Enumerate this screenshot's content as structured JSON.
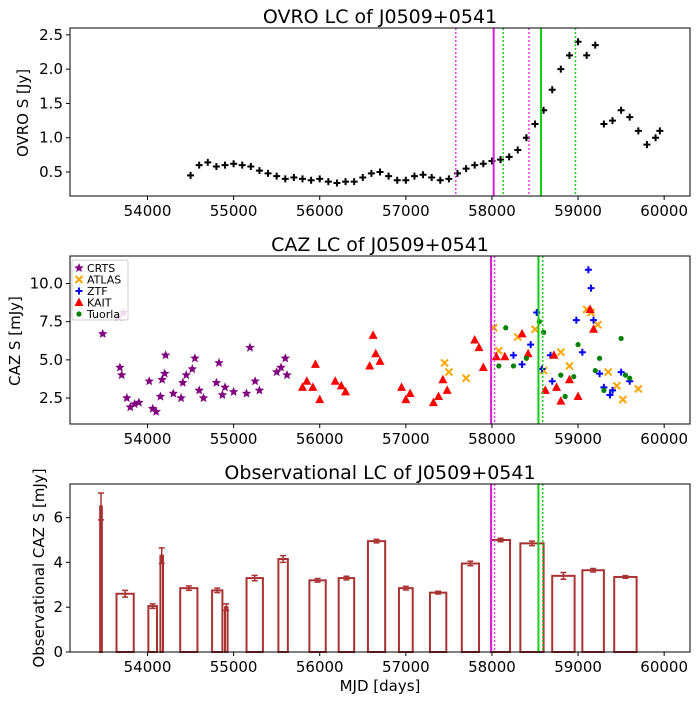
{
  "chart_data": [
    {
      "type": "scatter",
      "title": "OVRO LC of J0509+0541",
      "xlabel": "",
      "ylabel": "OVRO S [Jy]",
      "xlim": [
        53100,
        60300
      ],
      "ylim": [
        0.15,
        2.6
      ],
      "xticks": [
        "54000",
        "55000",
        "56000",
        "57000",
        "58000",
        "59000",
        "60000"
      ],
      "yticks": [
        "0.5",
        "1.0",
        "1.5",
        "2.0",
        "2.5"
      ],
      "ytick_values": [
        0.5,
        1.0,
        1.5,
        2.0,
        2.5
      ],
      "series": [
        {
          "name": "OVRO",
          "marker": "plus",
          "color": "#000000",
          "points": [
            [
              54500,
              0.45
            ],
            [
              54600,
              0.6
            ],
            [
              54700,
              0.64
            ],
            [
              54800,
              0.58
            ],
            [
              54900,
              0.6
            ],
            [
              55000,
              0.62
            ],
            [
              55100,
              0.6
            ],
            [
              55200,
              0.58
            ],
            [
              55300,
              0.52
            ],
            [
              55400,
              0.48
            ],
            [
              55500,
              0.44
            ],
            [
              55600,
              0.4
            ],
            [
              55700,
              0.42
            ],
            [
              55800,
              0.4
            ],
            [
              55900,
              0.38
            ],
            [
              56000,
              0.4
            ],
            [
              56100,
              0.36
            ],
            [
              56200,
              0.34
            ],
            [
              56300,
              0.36
            ],
            [
              56400,
              0.36
            ],
            [
              56500,
              0.42
            ],
            [
              56600,
              0.48
            ],
            [
              56700,
              0.5
            ],
            [
              56800,
              0.44
            ],
            [
              56900,
              0.38
            ],
            [
              57000,
              0.38
            ],
            [
              57100,
              0.44
            ],
            [
              57200,
              0.46
            ],
            [
              57300,
              0.42
            ],
            [
              57400,
              0.38
            ],
            [
              57500,
              0.4
            ],
            [
              57600,
              0.48
            ],
            [
              57700,
              0.55
            ],
            [
              57800,
              0.6
            ],
            [
              57900,
              0.62
            ],
            [
              58000,
              0.66
            ],
            [
              58100,
              0.68
            ],
            [
              58200,
              0.72
            ],
            [
              58300,
              0.82
            ],
            [
              58400,
              1.0
            ],
            [
              58500,
              1.2
            ],
            [
              58600,
              1.4
            ],
            [
              58700,
              1.7
            ],
            [
              58800,
              2.0
            ],
            [
              58900,
              2.2
            ],
            [
              59000,
              2.4
            ],
            [
              59100,
              2.2
            ],
            [
              59200,
              2.35
            ],
            [
              59300,
              1.2
            ],
            [
              59400,
              1.25
            ],
            [
              59500,
              1.4
            ],
            [
              59600,
              1.3
            ],
            [
              59700,
              1.1
            ],
            [
              59800,
              0.9
            ],
            [
              59900,
              1.0
            ],
            [
              59950,
              1.1
            ]
          ]
        }
      ],
      "vlines": [
        {
          "x": 57580,
          "style": "dotted",
          "color": "#e33ae3"
        },
        {
          "x": 58020,
          "style": "solid",
          "color": "#d81ed8"
        },
        {
          "x": 58130,
          "style": "dotted",
          "color": "#22cc22"
        },
        {
          "x": 58430,
          "style": "dotted",
          "color": "#e33ae3"
        },
        {
          "x": 58570,
          "style": "solid",
          "color": "#11cc11"
        },
        {
          "x": 58970,
          "style": "dotted",
          "color": "#22cc22"
        }
      ]
    },
    {
      "type": "scatter",
      "title": "CAZ LC of J0509+0541",
      "xlabel": "",
      "ylabel": "CAZ S [mJy]",
      "xlim": [
        53100,
        60300
      ],
      "ylim": [
        0.8,
        11.8
      ],
      "xticks": [
        "54000",
        "55000",
        "56000",
        "57000",
        "58000",
        "59000",
        "60000"
      ],
      "yticks": [
        "2.5",
        "5.0",
        "7.5",
        "10.0"
      ],
      "ytick_values": [
        2.5,
        5.0,
        7.5,
        10.0
      ],
      "legend_position": "top-left",
      "series": [
        {
          "name": "CRTS",
          "marker": "star",
          "color": "#800080",
          "points": [
            [
              53480,
              6.7
            ],
            [
              53660,
              7.8
            ],
            [
              53680,
              4.5
            ],
            [
              53700,
              4.0
            ],
            [
              53720,
              8.1
            ],
            [
              53760,
              2.5
            ],
            [
              53800,
              1.9
            ],
            [
              53850,
              2.1
            ],
            [
              53900,
              2.2
            ],
            [
              54020,
              3.6
            ],
            [
              54060,
              1.8
            ],
            [
              54100,
              1.6
            ],
            [
              54150,
              2.6
            ],
            [
              54170,
              3.7
            ],
            [
              54200,
              4.1
            ],
            [
              54210,
              5.3
            ],
            [
              54300,
              2.8
            ],
            [
              54390,
              2.5
            ],
            [
              54410,
              3.5
            ],
            [
              54450,
              4.0
            ],
            [
              54520,
              4.4
            ],
            [
              54550,
              5.1
            ],
            [
              54600,
              3.0
            ],
            [
              54650,
              2.5
            ],
            [
              54800,
              3.5
            ],
            [
              54830,
              4.8
            ],
            [
              54870,
              2.7
            ],
            [
              54900,
              3.2
            ],
            [
              55000,
              2.9
            ],
            [
              55150,
              2.8
            ],
            [
              55190,
              5.8
            ],
            [
              55250,
              3.6
            ],
            [
              55300,
              3.0
            ],
            [
              55500,
              4.2
            ],
            [
              55550,
              4.5
            ],
            [
              55600,
              5.1
            ],
            [
              55620,
              4.0
            ]
          ]
        },
        {
          "name": "ATLAS",
          "marker": "x",
          "color": "#ffa500",
          "points": [
            [
              57450,
              4.8
            ],
            [
              57500,
              4.2
            ],
            [
              57700,
              3.8
            ],
            [
              58020,
              7.1
            ],
            [
              58080,
              5.6
            ],
            [
              58300,
              6.5
            ],
            [
              58500,
              7.0
            ],
            [
              58600,
              4.3
            ],
            [
              58800,
              5.5
            ],
            [
              58900,
              4.6
            ],
            [
              59100,
              8.3
            ],
            [
              59150,
              8.1
            ],
            [
              59230,
              7.3
            ],
            [
              59350,
              4.2
            ],
            [
              59450,
              3.3
            ],
            [
              59520,
              2.4
            ],
            [
              59700,
              3.1
            ]
          ]
        },
        {
          "name": "ZTF",
          "marker": "plus",
          "color": "#0000ff",
          "points": [
            [
              58250,
              5.3
            ],
            [
              58350,
              4.7
            ],
            [
              58450,
              6.0
            ],
            [
              58520,
              8.1
            ],
            [
              58580,
              4.4
            ],
            [
              58680,
              5.3
            ],
            [
              58700,
              3.6
            ],
            [
              58980,
              7.6
            ],
            [
              59050,
              5.5
            ],
            [
              59120,
              10.9
            ],
            [
              59150,
              9.7
            ],
            [
              59180,
              7.6
            ],
            [
              59250,
              4.1
            ],
            [
              59300,
              3.2
            ],
            [
              59370,
              2.7
            ],
            [
              59400,
              3.0
            ],
            [
              59500,
              4.2
            ],
            [
              59600,
              3.6
            ]
          ]
        },
        {
          "name": "KAIT",
          "marker": "triangle",
          "color": "#ff0000",
          "points": [
            [
              55800,
              3.2
            ],
            [
              55850,
              3.6
            ],
            [
              55920,
              3.2
            ],
            [
              55950,
              4.7
            ],
            [
              56000,
              2.4
            ],
            [
              56180,
              3.6
            ],
            [
              56250,
              3.3
            ],
            [
              56300,
              2.9
            ],
            [
              56580,
              4.6
            ],
            [
              56620,
              6.6
            ],
            [
              56650,
              5.4
            ],
            [
              56700,
              4.9
            ],
            [
              56950,
              3.2
            ],
            [
              57000,
              2.4
            ],
            [
              57050,
              2.8
            ],
            [
              57320,
              2.2
            ],
            [
              57380,
              2.6
            ],
            [
              57430,
              3.7
            ],
            [
              57480,
              3.0
            ],
            [
              57800,
              6.3
            ],
            [
              57850,
              5.8
            ],
            [
              57900,
              4.5
            ],
            [
              58050,
              5.2
            ],
            [
              58150,
              5.2
            ],
            [
              58350,
              6.7
            ],
            [
              58420,
              5.4
            ],
            [
              58620,
              3.0
            ],
            [
              58720,
              5.3
            ],
            [
              58750,
              3.2
            ],
            [
              58800,
              2.3
            ],
            [
              58900,
              3.7
            ],
            [
              59000,
              2.6
            ],
            [
              59140,
              8.3
            ],
            [
              59180,
              7.0
            ]
          ]
        },
        {
          "name": "Tuorla",
          "marker": "dot",
          "color": "#008000",
          "points": [
            [
              58080,
              4.6
            ],
            [
              58160,
              7.1
            ],
            [
              58250,
              4.6
            ],
            [
              58400,
              5.1
            ],
            [
              58550,
              7.5
            ],
            [
              58600,
              6.8
            ],
            [
              58800,
              4.0
            ],
            [
              58850,
              2.6
            ],
            [
              58950,
              3.9
            ],
            [
              59000,
              6.0
            ],
            [
              59200,
              4.3
            ],
            [
              59250,
              5.1
            ],
            [
              59300,
              3.0
            ],
            [
              59500,
              6.4
            ],
            [
              59550,
              4.0
            ],
            [
              59600,
              3.8
            ]
          ]
        }
      ],
      "vlines": [
        {
          "x": 57990,
          "style": "solid",
          "color": "#d81ed8"
        },
        {
          "x": 58030,
          "style": "dotted",
          "color": "#e33ae3"
        },
        {
          "x": 58540,
          "style": "solid",
          "color": "#11cc11"
        },
        {
          "x": 58590,
          "style": "dotted",
          "color": "#22cc22"
        }
      ]
    },
    {
      "type": "bar",
      "title": "Observational LC of J0509+0541",
      "xlabel": "MJD [days]",
      "ylabel": "Observational CAZ S [mJy]",
      "xlim": [
        53100,
        60300
      ],
      "ylim": [
        0,
        7.5
      ],
      "xticks": [
        "54000",
        "55000",
        "56000",
        "57000",
        "58000",
        "59000",
        "60000"
      ],
      "yticks": [
        "0",
        "2",
        "4",
        "6"
      ],
      "ytick_values": [
        0,
        2,
        4,
        6
      ],
      "bars": [
        {
          "x0": 53450,
          "x1": 53470,
          "value": 6.5,
          "err": 0.6
        },
        {
          "x0": 53640,
          "x1": 53840,
          "value": 2.6,
          "err": 0.15
        },
        {
          "x0": 54010,
          "x1": 54110,
          "value": 2.05,
          "err": 0.1
        },
        {
          "x0": 54150,
          "x1": 54180,
          "value": 4.3,
          "err": 0.35
        },
        {
          "x0": 54380,
          "x1": 54580,
          "value": 2.85,
          "err": 0.1
        },
        {
          "x0": 54750,
          "x1": 54870,
          "value": 2.75,
          "err": 0.1
        },
        {
          "x0": 54900,
          "x1": 54930,
          "value": 2.0,
          "err": 0.15
        },
        {
          "x0": 55150,
          "x1": 55340,
          "value": 3.3,
          "err": 0.12
        },
        {
          "x0": 55520,
          "x1": 55630,
          "value": 4.15,
          "err": 0.15
        },
        {
          "x0": 55880,
          "x1": 56070,
          "value": 3.2,
          "err": 0.08
        },
        {
          "x0": 56220,
          "x1": 56400,
          "value": 3.3,
          "err": 0.08
        },
        {
          "x0": 56560,
          "x1": 56760,
          "value": 4.95,
          "err": 0.08
        },
        {
          "x0": 56920,
          "x1": 57080,
          "value": 2.85,
          "err": 0.08
        },
        {
          "x0": 57280,
          "x1": 57470,
          "value": 2.65,
          "err": 0.06
        },
        {
          "x0": 57650,
          "x1": 57850,
          "value": 3.95,
          "err": 0.1
        },
        {
          "x0": 57990,
          "x1": 58210,
          "value": 5.0,
          "err": 0.08
        },
        {
          "x0": 58330,
          "x1": 58600,
          "value": 4.85,
          "err": 0.1
        },
        {
          "x0": 58700,
          "x1": 58960,
          "value": 3.4,
          "err": 0.15
        },
        {
          "x0": 59050,
          "x1": 59300,
          "value": 3.65,
          "err": 0.08
        },
        {
          "x0": 59420,
          "x1": 59680,
          "value": 3.35,
          "err": 0.06
        }
      ],
      "color": "#a83232",
      "vlines": [
        {
          "x": 57990,
          "style": "solid",
          "color": "#d81ed8"
        },
        {
          "x": 58030,
          "style": "dotted",
          "color": "#e33ae3"
        },
        {
          "x": 58540,
          "style": "solid",
          "color": "#11cc11"
        },
        {
          "x": 58590,
          "style": "dotted",
          "color": "#22cc22"
        }
      ]
    }
  ]
}
